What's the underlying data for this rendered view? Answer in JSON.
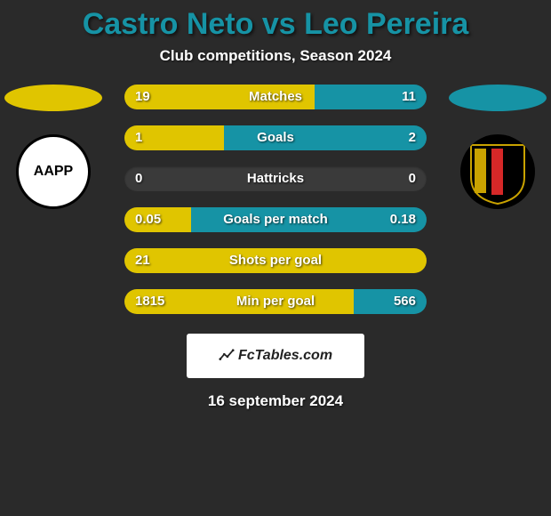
{
  "title": {
    "text": "Castro Neto vs Leo Pereira",
    "color": "#1693a5",
    "fontsize": 34
  },
  "subtitle": {
    "text": "Club competitions, Season 2024",
    "color": "#ffffff",
    "fontsize": 17
  },
  "date": {
    "text": "16 september 2024",
    "color": "#ffffff",
    "fontsize": 17
  },
  "colors": {
    "background": "#2a2a2a",
    "player1": "#e0c500",
    "player2": "#1693a5",
    "bar_track": "#3a3a3a",
    "brand_bg": "#ffffff",
    "brand_text": "#222222"
  },
  "sides": {
    "left": {
      "ellipse_color": "#e0c500",
      "crest_text": "AAPP",
      "crest_bg": "#ffffff",
      "crest_border": "#000000",
      "crest_text_color": "#000000"
    },
    "right": {
      "ellipse_color": "#1693a5",
      "crest_text": "",
      "crest_bg": "#000000",
      "stripes": [
        "#c9a200",
        "#d62828",
        "#000000"
      ]
    }
  },
  "stats": [
    {
      "label": "Matches",
      "left_val": "19",
      "right_val": "11",
      "left_pct": 63,
      "right_pct": 37
    },
    {
      "label": "Goals",
      "left_val": "1",
      "right_val": "2",
      "left_pct": 33,
      "right_pct": 67
    },
    {
      "label": "Hattricks",
      "left_val": "0",
      "right_val": "0",
      "left_pct": 50,
      "right_pct": 50,
      "empty": true
    },
    {
      "label": "Goals per match",
      "left_val": "0.05",
      "right_val": "0.18",
      "left_pct": 22,
      "right_pct": 78
    },
    {
      "label": "Shots per goal",
      "left_val": "21",
      "right_val": "",
      "left_pct": 100,
      "right_pct": 0
    },
    {
      "label": "Min per goal",
      "left_val": "1815",
      "right_val": "566",
      "left_pct": 76,
      "right_pct": 24
    }
  ],
  "brand": {
    "text": "FcTables.com",
    "fontsize": 16
  }
}
